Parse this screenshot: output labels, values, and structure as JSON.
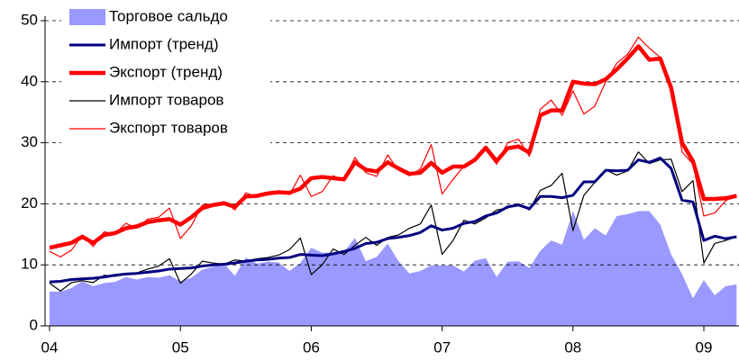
{
  "chart_data": {
    "type": "line",
    "categories": [
      "04",
      null,
      null,
      null,
      null,
      null,
      null,
      null,
      null,
      null,
      null,
      null,
      "05",
      null,
      null,
      null,
      null,
      null,
      null,
      null,
      null,
      null,
      null,
      null,
      "06",
      null,
      null,
      null,
      null,
      null,
      null,
      null,
      null,
      null,
      null,
      null,
      "07",
      null,
      null,
      null,
      null,
      null,
      null,
      null,
      null,
      null,
      null,
      null,
      "08",
      null,
      null,
      null,
      null,
      null,
      null,
      null,
      null,
      null,
      null,
      null,
      "09",
      null,
      null,
      null
    ],
    "ylim": [
      0,
      50
    ],
    "yticks": [
      0,
      10,
      20,
      30,
      40,
      50
    ],
    "grid": true,
    "legend": "upper left",
    "series": [
      {
        "name": "Торговое сальдо",
        "style": "area",
        "color": "#9999ff",
        "values": [
          5.6,
          5.6,
          6.2,
          7.3,
          6.5,
          7.0,
          7.2,
          8.0,
          7.6,
          8.0,
          7.9,
          8.3,
          7.3,
          7.9,
          9.2,
          9.7,
          10.2,
          8.2,
          11.2,
          10.2,
          10.5,
          10.4,
          9.0,
          10.3,
          12.8,
          12.0,
          12.0,
          12.1,
          14.4,
          10.6,
          11.3,
          13.5,
          10.6,
          8.6,
          9.0,
          9.9,
          9.9,
          9.9,
          8.9,
          10.7,
          11.1,
          8.0,
          10.5,
          10.6,
          9.5,
          12.3,
          14.0,
          13.3,
          18.8,
          14.1,
          16.0,
          14.8,
          18.0,
          18.3,
          18.8,
          18.8,
          16.6,
          11.7,
          8.5,
          4.5,
          7.5,
          5.0,
          6.5,
          6.8
        ]
      },
      {
        "name": "Импорт (тренд)",
        "style": "line",
        "line_width": 3,
        "color": "#000080",
        "values": [
          7.2,
          7.3,
          7.6,
          7.7,
          7.8,
          8.0,
          8.3,
          8.5,
          8.6,
          8.8,
          9.0,
          9.3,
          9.4,
          9.5,
          9.8,
          10.0,
          10.1,
          10.3,
          10.6,
          10.8,
          10.9,
          11.1,
          11.2,
          11.7,
          11.6,
          11.5,
          11.8,
          12.2,
          12.7,
          13.5,
          13.7,
          14.3,
          14.5,
          14.8,
          15.3,
          16.4,
          15.7,
          16.0,
          16.8,
          17.1,
          18.0,
          18.5,
          19.5,
          19.8,
          19.2,
          21.2,
          21.2,
          21.0,
          21.4,
          23.6,
          23.6,
          25.5,
          25.4,
          25.5,
          27.2,
          26.8,
          27.5,
          25.8,
          20.6,
          20.3,
          14.0,
          14.7,
          14.3,
          14.6
        ]
      },
      {
        "name": "Экспорт (тренд)",
        "style": "line",
        "line_width": 4.5,
        "color": "#ff0000",
        "values": [
          12.8,
          13.2,
          13.6,
          14.6,
          13.6,
          14.9,
          15.2,
          16.0,
          16.3,
          17.0,
          17.3,
          17.5,
          16.6,
          17.8,
          19.3,
          19.8,
          20.1,
          19.5,
          21.2,
          21.3,
          21.7,
          21.9,
          21.8,
          22.5,
          24.2,
          24.4,
          24.2,
          24.0,
          26.8,
          25.6,
          25.3,
          26.8,
          25.8,
          24.9,
          25.1,
          26.7,
          25.1,
          26.1,
          26.1,
          27.2,
          29.2,
          27.0,
          29.1,
          29.4,
          28.4,
          34.5,
          35.3,
          35.3,
          40.0,
          39.7,
          39.6,
          40.4,
          42.0,
          43.8,
          45.8,
          43.6,
          43.8,
          39.0,
          30.0,
          27.0,
          20.8,
          20.8,
          20.9,
          21.3
        ]
      },
      {
        "name": "Импорт товаров",
        "style": "line",
        "line_width": 1.2,
        "color": "#000000",
        "values": [
          7.0,
          5.7,
          7.1,
          7.4,
          7.1,
          8.3,
          8.1,
          8.6,
          8.7,
          9.3,
          9.8,
          11.0,
          7.0,
          8.5,
          10.6,
          10.3,
          10.1,
          10.8,
          10.6,
          11.0,
          11.2,
          11.6,
          12.5,
          14.4,
          8.4,
          10.0,
          12.6,
          11.7,
          13.2,
          14.5,
          13.2,
          14.5,
          14.9,
          16.0,
          16.7,
          19.8,
          11.7,
          14.0,
          17.3,
          16.7,
          17.7,
          19.0,
          19.3,
          20.0,
          19.0,
          22.2,
          23.0,
          25.0,
          15.6,
          21.4,
          23.5,
          25.6,
          24.7,
          25.4,
          28.5,
          26.6,
          27.2,
          27.3,
          22.0,
          23.8,
          10.3,
          13.5,
          14.0,
          14.6
        ]
      },
      {
        "name": "Экспорт товаров",
        "style": "line",
        "line_width": 1.2,
        "color": "#ff0000",
        "values": [
          12.2,
          11.3,
          12.4,
          14.9,
          13.0,
          15.4,
          15.1,
          16.8,
          16.0,
          17.5,
          17.8,
          19.3,
          14.3,
          16.4,
          19.8,
          20.0,
          20.3,
          19.0,
          21.8,
          21.1,
          21.7,
          22.0,
          21.5,
          24.7,
          21.2,
          22.0,
          24.6,
          23.8,
          27.6,
          25.1,
          24.5,
          28.0,
          25.5,
          24.6,
          25.7,
          29.7,
          21.6,
          24.0,
          26.2,
          27.4,
          28.8,
          26.5,
          30.0,
          30.6,
          27.8,
          35.5,
          37.0,
          34.5,
          38.5,
          34.7,
          36.0,
          40.0,
          43.0,
          44.5,
          47.3,
          45.5,
          44.0,
          38.5,
          28.5,
          26.5,
          18.0,
          18.5,
          20.5,
          21.4
        ]
      }
    ]
  }
}
